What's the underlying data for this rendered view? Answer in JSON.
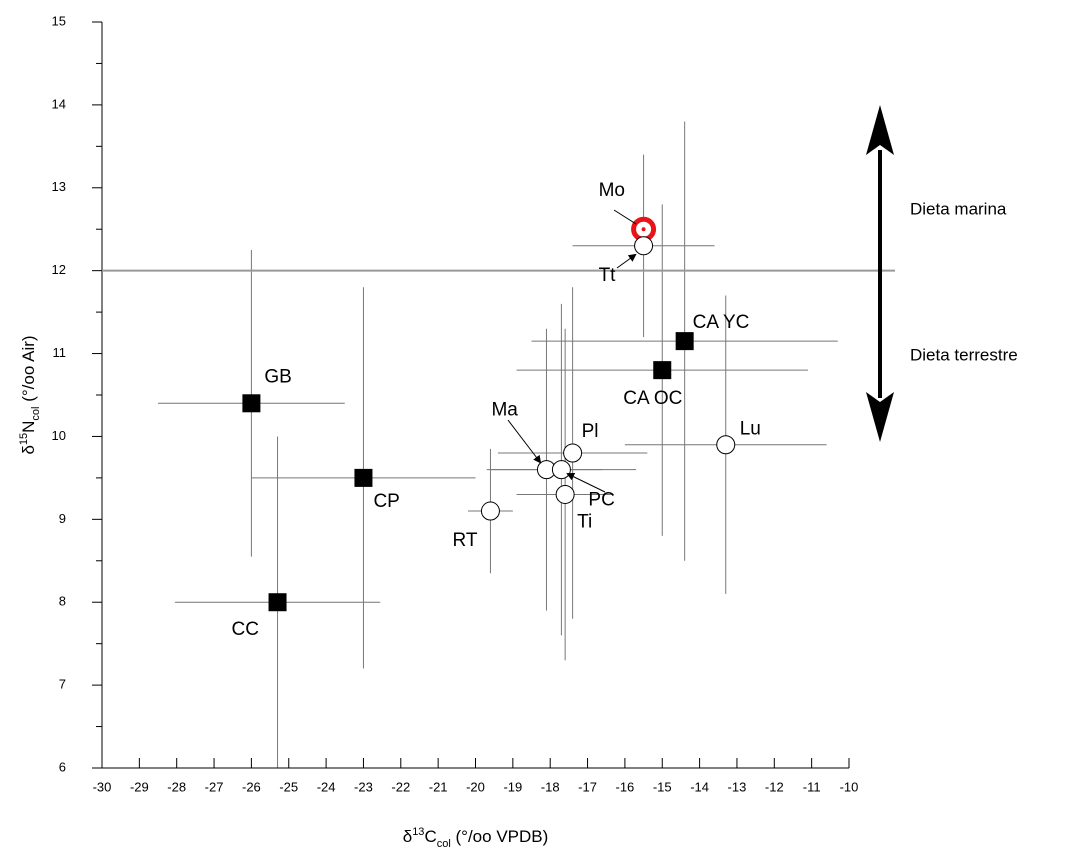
{
  "chart_data": {
    "type": "scatter",
    "x_label": [
      "δ",
      "13",
      "C",
      "col",
      " (°/oo VPDB)"
    ],
    "y_label": [
      "δ",
      "15",
      "N",
      "col",
      " (°/oo Air)"
    ],
    "xlim": [
      -30,
      -10
    ],
    "ylim": [
      6,
      15
    ],
    "xticks": [
      -30,
      -29,
      -28,
      -27,
      -26,
      -25,
      -24,
      -23,
      -22,
      -21,
      -20,
      -19,
      -18,
      -17,
      -16,
      -15,
      -14,
      -13,
      -12,
      -11,
      -10
    ],
    "yticks": [
      6,
      7,
      8,
      9,
      10,
      11,
      12,
      13,
      14,
      15
    ],
    "threshold": 12,
    "annotations": [
      "Dieta marina",
      "Dieta terrestre"
    ],
    "points": {
      "labels": [
        "GB",
        "CP",
        "CC",
        "CA YC",
        "CA OC",
        "Mo",
        "Tt",
        "Ma",
        "PC",
        "Pl",
        "Ti",
        "RT",
        "Lu"
      ],
      "x": [
        -26.0,
        -23.0,
        -25.3,
        -14.4,
        -15.0,
        -15.5,
        -15.5,
        -18.1,
        -17.7,
        -17.4,
        -17.6,
        -19.6,
        -13.3
      ],
      "y": [
        10.4,
        9.5,
        8.0,
        11.15,
        10.8,
        12.5,
        12.3,
        9.6,
        9.6,
        9.8,
        9.3,
        9.1,
        9.9
      ],
      "xerr": [
        2.5,
        3.0,
        2.75,
        4.1,
        3.9,
        null,
        1.9,
        1.5,
        2.0,
        2.0,
        1.3,
        0.6,
        2.7
      ],
      "yerr": [
        1.85,
        2.3,
        2.0,
        2.65,
        2.0,
        null,
        1.1,
        1.7,
        2.0,
        2.0,
        2.0,
        0.75,
        1.8
      ],
      "markers": [
        "square",
        "square",
        "square",
        "square",
        "square",
        "target",
        "circle",
        "circle",
        "circle",
        "circle",
        "circle",
        "circle",
        "circle"
      ],
      "color": "#000000",
      "highlight_color": "#e8141a"
    }
  }
}
